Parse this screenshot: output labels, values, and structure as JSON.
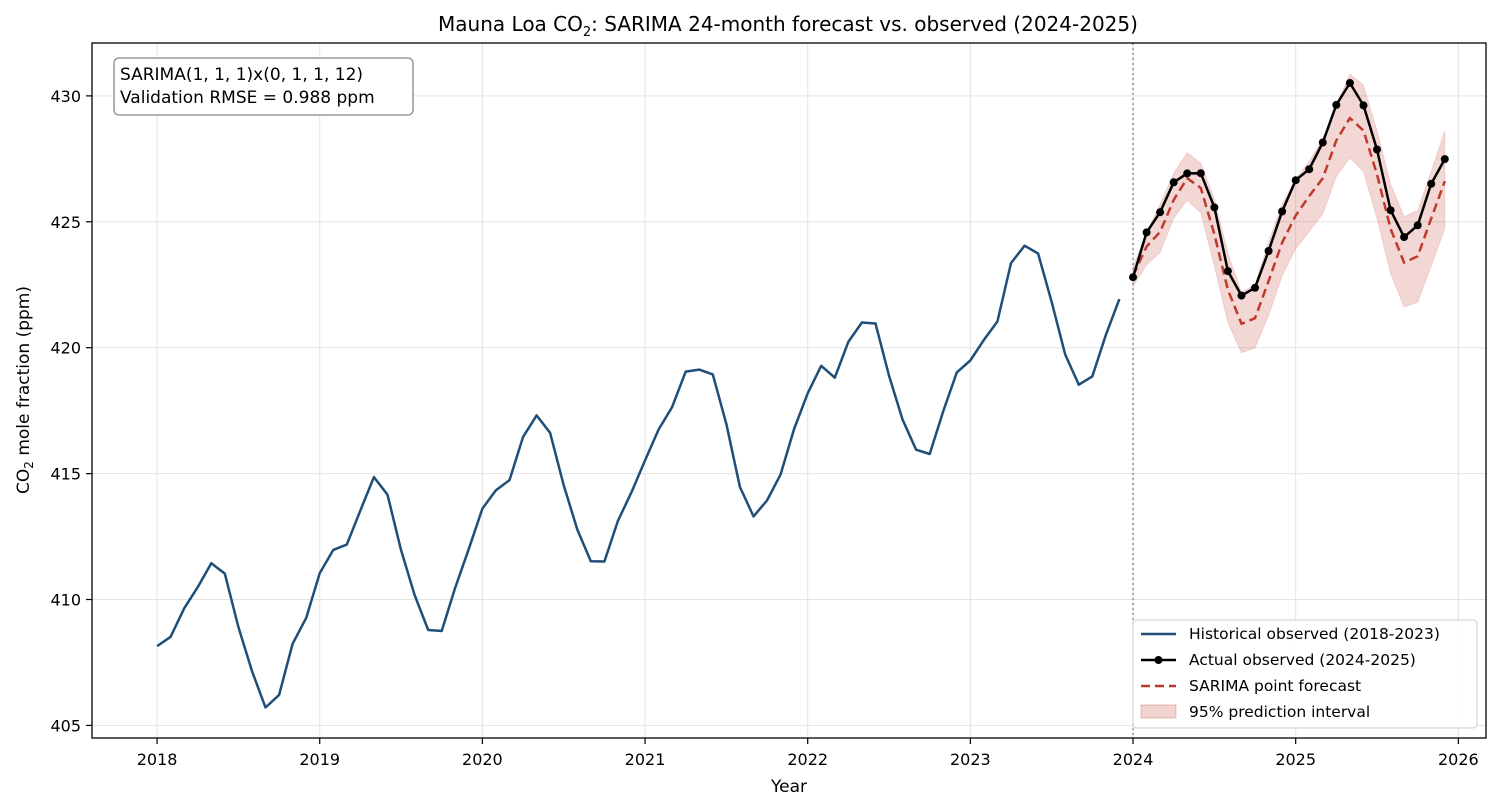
{
  "chart_data": {
    "type": "line",
    "title": {
      "prefix": "Mauna Loa CO",
      "sub": "2",
      "suffix": ": SARIMA 24-month forecast vs. observed (2024-2025)"
    },
    "xlabel": "Year",
    "ylabel": {
      "prefix": "CO",
      "sub": "2",
      "suffix": " mole fraction (ppm)"
    },
    "xlim": [
      2017.6,
      2026.17
    ],
    "ylim": [
      404.5,
      432.1
    ],
    "xticks": [
      2018,
      2019,
      2020,
      2021,
      2022,
      2023,
      2024,
      2025,
      2026
    ],
    "yticks": [
      405,
      410,
      415,
      420,
      425,
      430
    ],
    "grid": true,
    "forecast_origin": 2024.0,
    "annotation": {
      "line1": "SARIMA(1, 1, 1)x(0, 1, 1, 12)",
      "line2": "Validation RMSE = 0.988 ppm"
    },
    "legend_position": "bottom-right",
    "series": [
      {
        "name": "Historical observed (2018-2023)",
        "kind": "line",
        "color": "#1f4e79",
        "x_start": 2018.0,
        "step": 0.08333,
        "values": [
          408.15,
          408.52,
          409.65,
          410.49,
          411.44,
          411.03,
          408.91,
          407.17,
          405.71,
          406.21,
          408.24,
          409.27,
          411.04,
          411.97,
          412.18,
          413.54,
          414.86,
          414.16,
          411.97,
          410.18,
          408.79,
          408.75,
          410.48,
          412.01,
          413.61,
          414.34,
          414.74,
          416.45,
          417.31,
          416.62,
          414.54,
          412.78,
          411.52,
          411.51,
          413.12,
          414.26,
          415.52,
          416.75,
          417.64,
          419.05,
          419.13,
          418.94,
          416.96,
          414.47,
          413.3,
          413.93,
          414.97,
          416.77,
          418.19,
          419.28,
          418.81,
          420.23,
          421.0,
          420.96,
          418.89,
          417.14,
          415.95,
          415.78,
          417.47,
          419.02,
          419.49,
          420.31,
          421.04,
          423.36,
          424.05,
          423.74,
          421.81,
          419.73,
          418.53,
          418.86,
          420.51,
          421.93
        ]
      },
      {
        "name": "Actual observed (2024-2025)",
        "kind": "line-marker",
        "color": "#000000",
        "x_start": 2024.0,
        "step": 0.08333,
        "values": [
          422.8,
          424.58,
          425.38,
          426.57,
          426.92,
          426.93,
          425.57,
          423.04,
          422.07,
          422.38,
          423.84,
          425.41,
          426.65,
          427.09,
          428.15,
          429.64,
          430.51,
          429.62,
          427.87,
          425.46,
          424.39,
          424.86,
          426.51,
          427.49
        ]
      },
      {
        "name": "SARIMA point forecast",
        "kind": "dashed",
        "color": "#c0392b",
        "x_start": 2024.0,
        "step": 0.08333,
        "values": [
          422.85,
          424.02,
          424.6,
          425.87,
          426.73,
          426.34,
          424.5,
          422.3,
          420.95,
          421.17,
          422.65,
          424.17,
          425.25,
          426.02,
          426.73,
          428.23,
          429.12,
          428.62,
          426.88,
          424.72,
          423.38,
          423.63,
          425.13,
          426.61
        ]
      },
      {
        "name": "95% prediction interval",
        "kind": "band",
        "color": "#c0392b",
        "x_start": 2024.0,
        "step": 0.08333,
        "upper": [
          423.22,
          424.58,
          425.7,
          426.93,
          427.74,
          427.33,
          425.9,
          423.75,
          422.2,
          422.5,
          424.2,
          425.7,
          426.7,
          427.4,
          428.3,
          429.66,
          430.86,
          430.43,
          428.6,
          426.5,
          425.2,
          425.45,
          427.0,
          428.6
        ],
        "lower": [
          422.45,
          423.29,
          423.78,
          425.15,
          425.86,
          425.36,
          423.25,
          420.99,
          419.8,
          419.99,
          421.28,
          422.85,
          423.93,
          424.61,
          425.32,
          426.8,
          427.54,
          426.98,
          425.14,
          422.94,
          421.62,
          421.8,
          423.25,
          424.72
        ]
      }
    ]
  }
}
